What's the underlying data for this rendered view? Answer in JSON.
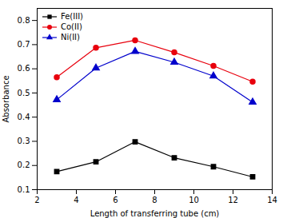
{
  "chart_data": {
    "type": "line",
    "xlabel": "Length of transferring tube (cm)",
    "ylabel": "Absorbance",
    "x": [
      3,
      5,
      7,
      9,
      11,
      13
    ],
    "series": [
      {
        "name": "Fe(III)",
        "color": "#000000",
        "marker": "square",
        "values": [
          0.175,
          0.215,
          0.298,
          0.232,
          0.195,
          0.153
        ],
        "errors": [
          0.006,
          0.006,
          0.006,
          0.006,
          0.006,
          0.006
        ]
      },
      {
        "name": "Co(II)",
        "color": "#e8000d",
        "marker": "circle",
        "values": [
          0.565,
          0.687,
          0.718,
          0.668,
          0.612,
          0.547
        ],
        "errors": [
          0.007,
          0.007,
          0.007,
          0.007,
          0.007,
          0.007
        ]
      },
      {
        "name": "Ni(II)",
        "color": "#0000cc",
        "marker": "triangle",
        "values": [
          0.472,
          0.603,
          0.672,
          0.627,
          0.57,
          0.462
        ],
        "errors": [
          0.007,
          0.007,
          0.007,
          0.007,
          0.007,
          0.007
        ]
      }
    ],
    "xlim": [
      2,
      14
    ],
    "ylim": [
      0.1,
      0.85
    ],
    "xticks": [
      2,
      4,
      6,
      8,
      10,
      12,
      14
    ],
    "yticks": [
      0.1,
      0.2,
      0.3,
      0.4,
      0.5,
      0.6,
      0.7,
      0.8
    ],
    "legend": "upper left",
    "grid": false
  }
}
